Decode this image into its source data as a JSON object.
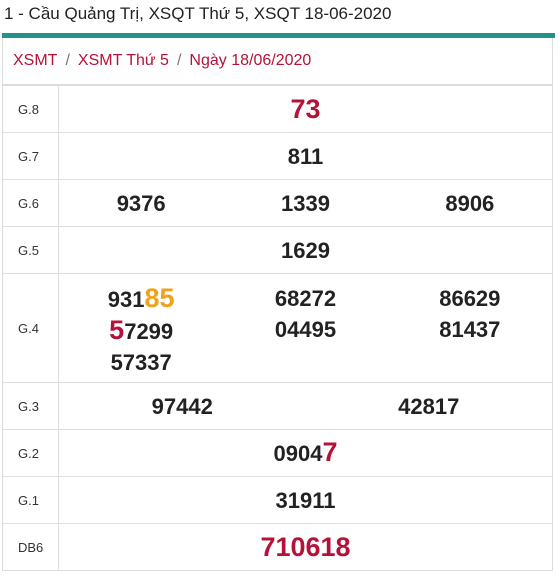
{
  "heading": "1 - Cầu Quảng Trị, XSQT Thứ 5, XSQT 18-06-2020",
  "colors": {
    "accent_green": "#21948a",
    "link_red": "#b5123a",
    "special_red": "#b5123a",
    "highlight_orange": "#f0a21b",
    "border": "#dddddd"
  },
  "breadcrumb": {
    "items": [
      "XSMT",
      "XSMT Thứ 5",
      "Ngày 18/06/2020"
    ],
    "separator": "/"
  },
  "results": {
    "g8": {
      "label": "G.8",
      "values": [
        "73"
      ]
    },
    "g7": {
      "label": "G.7",
      "values": [
        "811"
      ]
    },
    "g6": {
      "label": "G.6",
      "values": [
        "9376",
        "1339",
        "8906"
      ]
    },
    "g5": {
      "label": "G.5",
      "values": [
        "1629"
      ]
    },
    "g4": {
      "label": "G.4",
      "col1": {
        "n1_prefix": "931",
        "n1_suffix": "85",
        "n2_prefix": "5",
        "n2_suffix": "7299",
        "n3": "57337"
      },
      "col2": [
        "68272",
        "04495"
      ],
      "col3": [
        "86629",
        "81437"
      ]
    },
    "g3": {
      "label": "G.3",
      "values": [
        "97442",
        "42817"
      ]
    },
    "g2": {
      "label": "G.2",
      "prefix": "0904",
      "suffix": "7"
    },
    "g1": {
      "label": "G.1",
      "values": [
        "31911"
      ]
    },
    "db": {
      "label": "DB6",
      "values": [
        "710618"
      ]
    }
  }
}
